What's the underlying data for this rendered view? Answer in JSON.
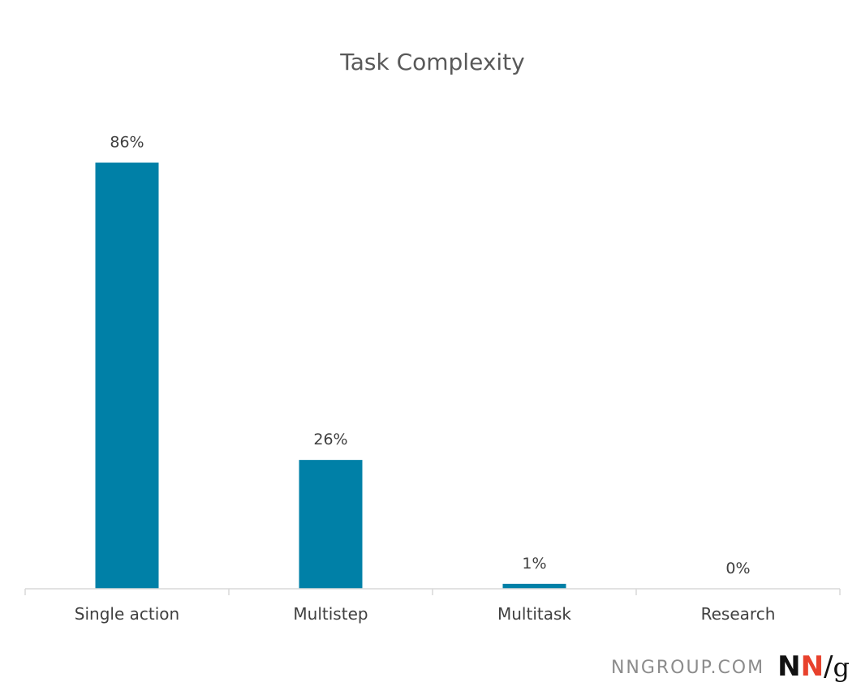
{
  "chart_data": {
    "type": "bar",
    "title": "Task Complexity",
    "categories": [
      "Single action",
      "Multistep",
      "Multitask",
      "Research"
    ],
    "values": [
      86,
      26,
      1,
      0
    ],
    "data_labels": [
      "86%",
      "26%",
      "1%",
      "0%"
    ],
    "xlabel": "",
    "ylabel": "",
    "ylim": [
      0,
      100
    ],
    "grid": false,
    "legend": "none",
    "bar_color": "#0080a7"
  },
  "branding": {
    "site": "NNGROUP.COM",
    "logo_n1": "N",
    "logo_n2": "N",
    "logo_slash": "/",
    "logo_g": "g",
    "logo_accent_color": "#e8412c"
  }
}
